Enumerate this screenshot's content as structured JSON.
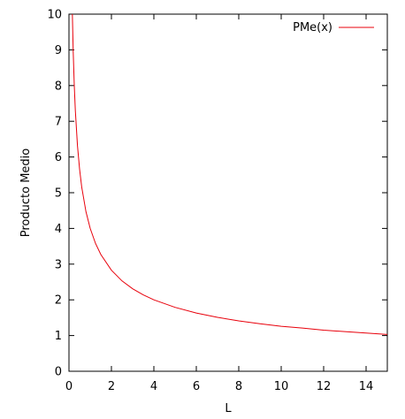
{
  "chart_data": {
    "type": "line",
    "xlabel": "L",
    "ylabel": "Producto Medio",
    "xlim": [
      0,
      15
    ],
    "ylim": [
      0,
      10
    ],
    "xticks": [
      0,
      2,
      4,
      6,
      8,
      10,
      12,
      14
    ],
    "yticks": [
      0,
      1,
      2,
      3,
      4,
      5,
      6,
      7,
      8,
      9,
      10
    ],
    "grid": false,
    "legend_position": "top-right",
    "series": [
      {
        "name": "PMe(x)",
        "color": "#e8000b",
        "x": [
          0.16,
          0.2,
          0.25,
          0.3,
          0.4,
          0.5,
          0.6,
          0.8,
          1.0,
          1.25,
          1.5,
          2.0,
          2.5,
          3.0,
          3.5,
          4.0,
          5.0,
          6.0,
          7.0,
          8.0,
          9.0,
          10.0,
          11.0,
          12.0,
          13.0,
          14.0,
          15.0
        ],
        "y": [
          10.0,
          8.94,
          8.0,
          7.3,
          6.32,
          5.66,
          5.16,
          4.47,
          4.0,
          3.58,
          3.27,
          2.83,
          2.53,
          2.31,
          2.14,
          2.0,
          1.79,
          1.63,
          1.51,
          1.41,
          1.33,
          1.26,
          1.21,
          1.15,
          1.11,
          1.07,
          1.03
        ]
      }
    ]
  }
}
